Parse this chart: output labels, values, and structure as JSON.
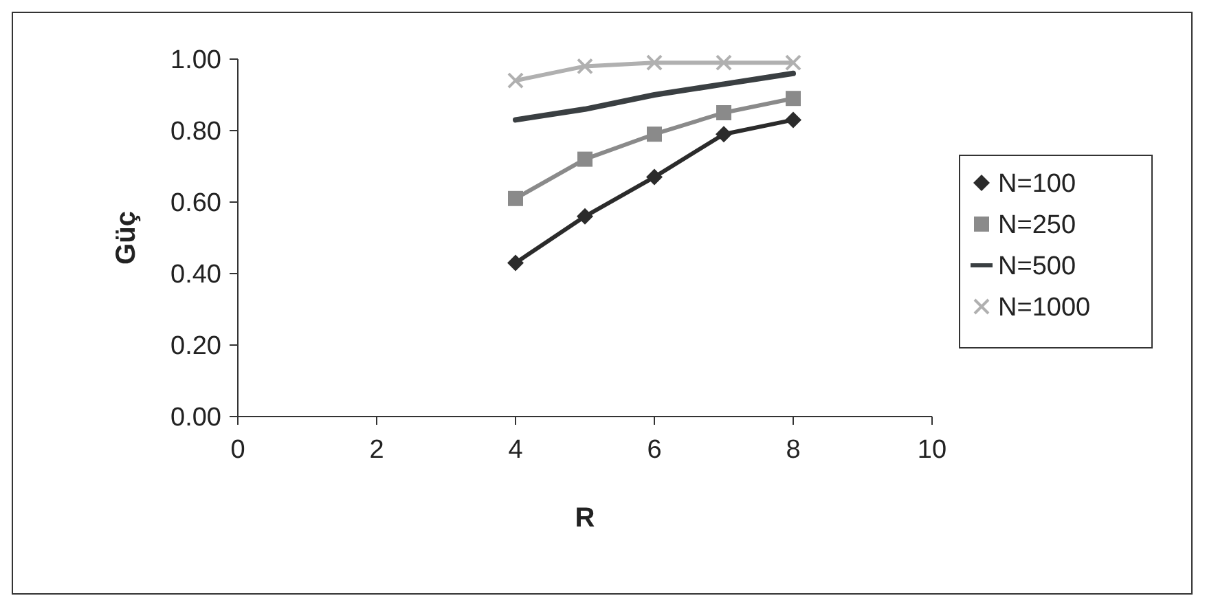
{
  "chart_data": {
    "type": "line",
    "xlabel": "R",
    "ylabel": "Güç",
    "x": [
      4,
      5,
      6,
      7,
      8
    ],
    "series": [
      {
        "name": "N=100",
        "color": "#2b2b2b",
        "marker": "diamond",
        "values": [
          0.43,
          0.56,
          0.67,
          0.79,
          0.83
        ]
      },
      {
        "name": "N=250",
        "color": "#8a8a8a",
        "marker": "square",
        "values": [
          0.61,
          0.72,
          0.79,
          0.85,
          0.89
        ]
      },
      {
        "name": "N=500",
        "color": "#3a3f42",
        "marker": "none",
        "values": [
          0.83,
          0.86,
          0.9,
          0.93,
          0.96
        ]
      },
      {
        "name": "N=1000",
        "color": "#b0b0b0",
        "marker": "cross",
        "values": [
          0.94,
          0.98,
          0.99,
          0.99,
          0.99
        ]
      }
    ],
    "xlim": [
      0,
      10
    ],
    "xticks": [
      0,
      2,
      4,
      6,
      8,
      10
    ],
    "ylim": [
      0,
      1
    ],
    "yticks": [
      {
        "value": 0,
        "label": "0.00"
      },
      {
        "value": 0.2,
        "label": "0.20"
      },
      {
        "value": 0.4,
        "label": "0.40"
      },
      {
        "value": 0.6,
        "label": "0.60"
      },
      {
        "value": 0.8,
        "label": "0.80"
      },
      {
        "value": 1,
        "label": "1.00"
      }
    ],
    "grid": false,
    "legend": "right"
  }
}
